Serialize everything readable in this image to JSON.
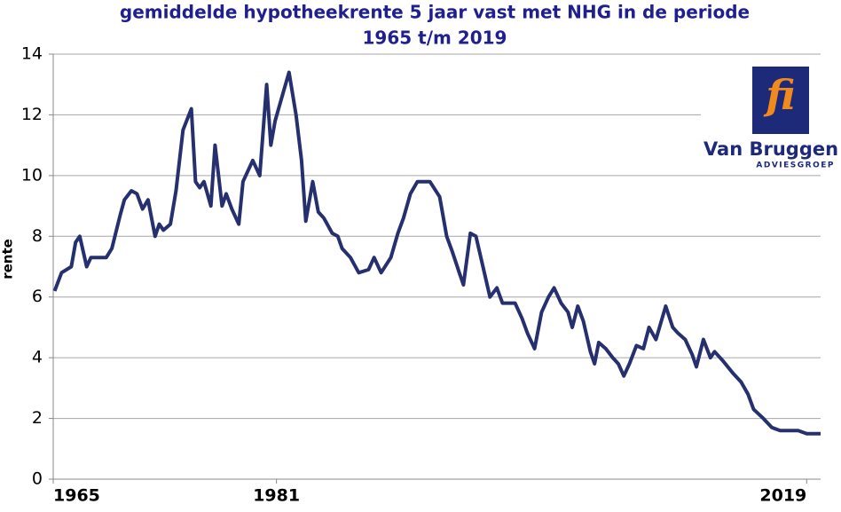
{
  "chart_data": {
    "type": "line",
    "title": [
      "gemiddelde hypotheekrente 5 jaar vast met NHG in de periode",
      "1965 t/m 2019"
    ],
    "y_label": "rente",
    "x": [
      1965.1,
      1965.6,
      1966.3,
      1966.6,
      1966.9,
      1967.4,
      1967.7,
      1968.8,
      1969.2,
      1969.8,
      1970.1,
      1970.6,
      1971.0,
      1971.4,
      1971.8,
      1972.3,
      1972.6,
      1972.9,
      1973.4,
      1973.8,
      1974.3,
      1974.9,
      1975.2,
      1975.5,
      1975.8,
      1976.3,
      1976.6,
      1977.1,
      1977.4,
      1977.8,
      1978.3,
      1978.6,
      1979.3,
      1979.8,
      1980.3,
      1980.6,
      1980.9,
      1981.4,
      1981.9,
      1982.4,
      1982.8,
      1983.1,
      1983.6,
      1984.0,
      1984.4,
      1985.0,
      1985.4,
      1985.7,
      1986.3,
      1986.9,
      1987.6,
      1988.0,
      1988.5,
      1989.2,
      1989.7,
      1990.1,
      1990.6,
      1991.1,
      1992.0,
      1992.7,
      1993.2,
      1993.6,
      1994.1,
      1994.4,
      1994.9,
      1995.3,
      1995.8,
      1996.3,
      1996.8,
      1997.2,
      1998.1,
      1998.6,
      1999.0,
      1999.5,
      2000.0,
      2000.5,
      2000.9,
      2001.4,
      2001.9,
      2002.2,
      2002.6,
      2003.0,
      2003.5,
      2003.8,
      2004.1,
      2004.6,
      2005.1,
      2005.5,
      2005.9,
      2006.3,
      2006.8,
      2007.3,
      2007.7,
      2008.2,
      2008.9,
      2009.4,
      2009.8,
      2010.3,
      2010.8,
      2011.1,
      2011.6,
      2012.1,
      2012.4,
      2013.0,
      2013.7,
      2014.3,
      2014.8,
      2015.2,
      2015.9,
      2016.5,
      2017.1,
      2017.8,
      2018.4,
      2019.0,
      2020.0
    ],
    "series": [
      {
        "name": "rente",
        "color": "#27306f",
        "values": [
          6.2,
          6.8,
          7.0,
          7.8,
          8.0,
          7.0,
          7.3,
          7.3,
          7.6,
          8.7,
          9.2,
          9.5,
          9.4,
          8.9,
          9.2,
          8.0,
          8.4,
          8.2,
          8.4,
          9.5,
          11.5,
          12.2,
          9.8,
          9.6,
          9.8,
          9.0,
          11.0,
          9.0,
          9.4,
          8.9,
          8.4,
          9.8,
          10.5,
          10.0,
          13.0,
          11.0,
          11.8,
          12.6,
          13.4,
          12.0,
          10.5,
          8.5,
          9.8,
          8.8,
          8.6,
          8.1,
          8.0,
          7.6,
          7.3,
          6.8,
          6.9,
          7.3,
          6.8,
          7.3,
          8.1,
          8.6,
          9.4,
          9.8,
          9.8,
          9.3,
          8.0,
          7.5,
          6.8,
          6.4,
          8.1,
          8.0,
          7.0,
          6.0,
          6.3,
          5.8,
          5.8,
          5.3,
          4.8,
          4.3,
          5.5,
          6.0,
          6.3,
          5.8,
          5.5,
          5.0,
          5.7,
          5.2,
          4.2,
          3.8,
          4.5,
          4.3,
          4.0,
          3.8,
          3.4,
          3.8,
          4.4,
          4.3,
          5.0,
          4.6,
          5.7,
          5.0,
          4.8,
          4.6,
          4.1,
          3.7,
          4.6,
          4.0,
          4.2,
          3.9,
          3.5,
          3.2,
          2.8,
          2.3,
          2.0,
          1.7,
          1.6,
          1.6,
          1.6,
          1.5,
          1.5
        ]
      }
    ],
    "xlim": [
      1965,
      2020
    ],
    "xticks": [
      1965,
      1981,
      2019
    ],
    "ylim": [
      0,
      14
    ],
    "yticks": [
      0,
      2,
      4,
      6,
      8,
      10,
      12,
      14
    ],
    "grid": true
  },
  "logo": {
    "mark": "fi",
    "name": "Van Bruggen",
    "tagline": "ADVIESGROEP"
  }
}
